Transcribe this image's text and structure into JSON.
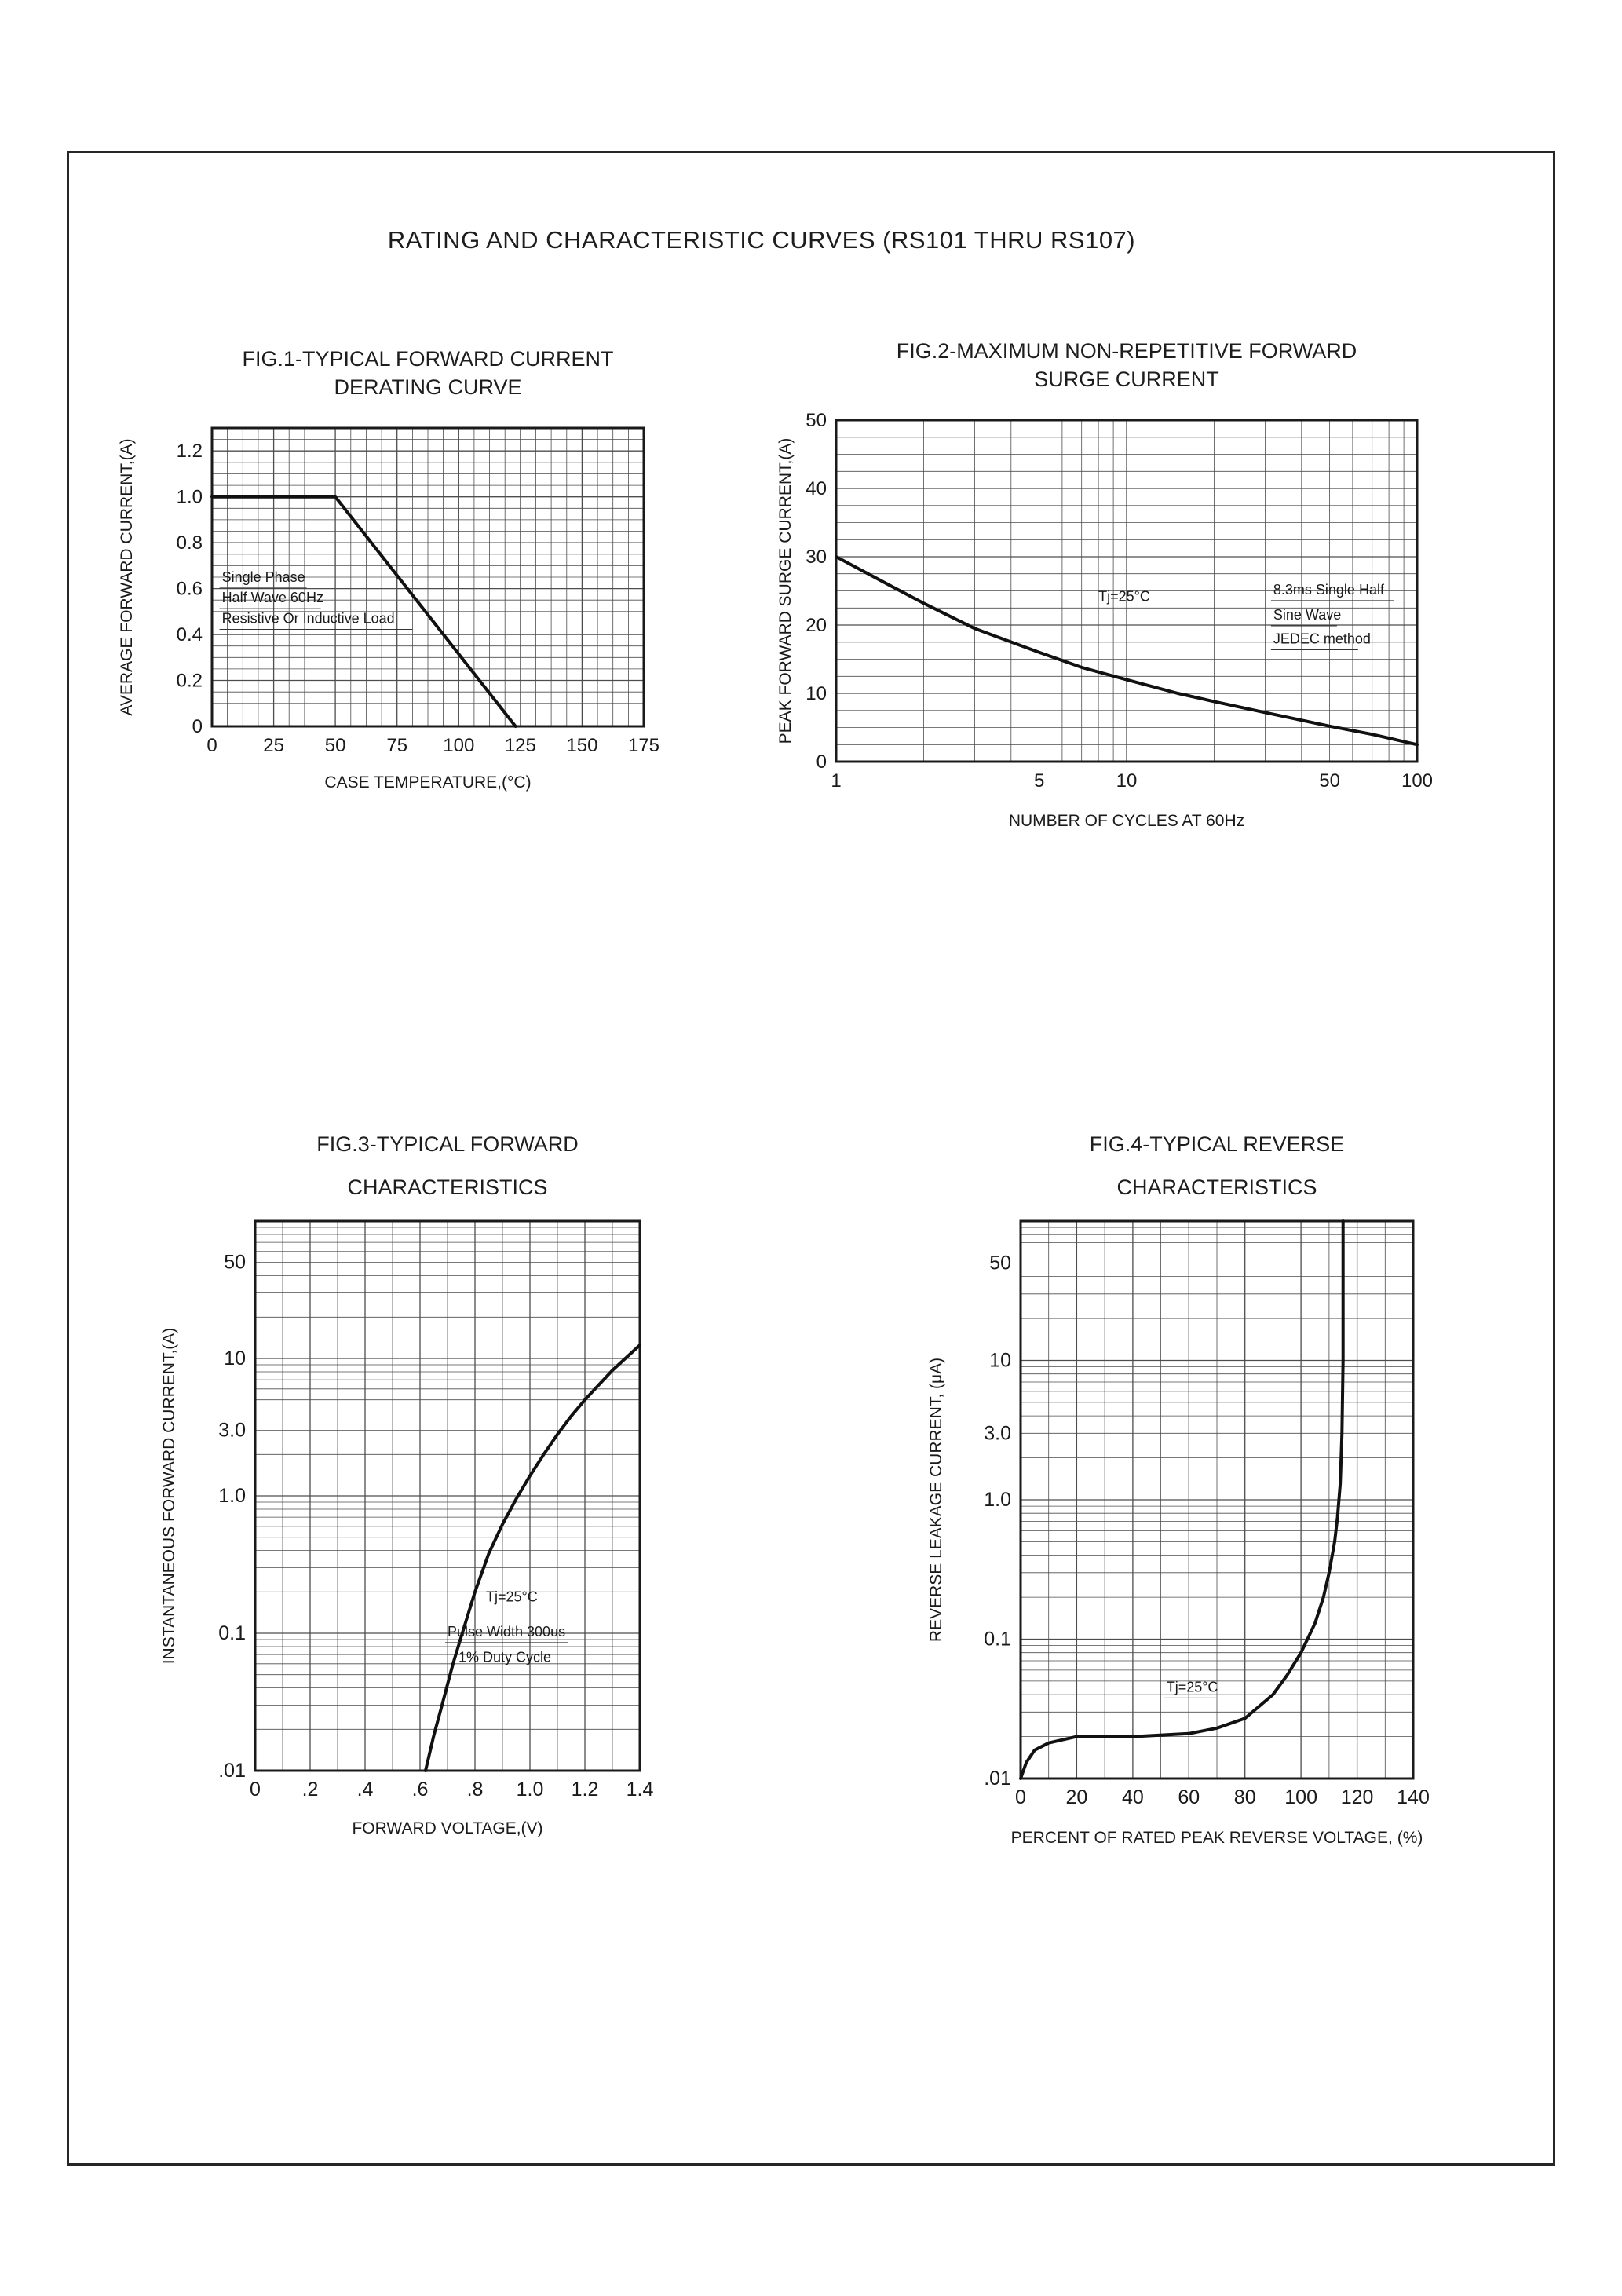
{
  "page": {
    "title": "RATING AND CHARACTERISTIC CURVES (RS101 THRU RS107)"
  },
  "chart_data": [
    {
      "type": "line",
      "title_line1": "FIG.1-TYPICAL FORWARD CURRENT",
      "title_line2": "DERATING CURVE",
      "xlabel": "CASE TEMPERATURE,(°C)",
      "ylabel": "AVERAGE FORWARD CURRENT,(A)",
      "xscale": "linear",
      "yscale": "linear",
      "xlim": [
        0,
        175
      ],
      "ylim": [
        0,
        1.3
      ],
      "xticks": [
        0,
        25,
        50,
        75,
        100,
        125,
        150,
        175
      ],
      "xtick_labels": [
        "0",
        "25",
        "50",
        "75",
        "100",
        "125",
        "150",
        "175"
      ],
      "x_minor": 4,
      "yticks": [
        0,
        0.2,
        0.4,
        0.6,
        0.8,
        1.0,
        1.2
      ],
      "ytick_labels": [
        "0",
        "0.2",
        "0.4",
        "0.6",
        "0.8",
        "1.0",
        "1.2"
      ],
      "y_minor": 4,
      "grid": true,
      "legend": "none",
      "series": [
        {
          "name": "derating-curve",
          "x": [
            0,
            50,
            123
          ],
          "y": [
            1.0,
            1.0,
            0
          ]
        }
      ],
      "annotations": [
        {
          "text": "Single Phase",
          "x": 4,
          "y": 0.63,
          "underline": true
        },
        {
          "text": "Half Wave 60Hz",
          "x": 4,
          "y": 0.54,
          "underline": true
        },
        {
          "text": "Resistive Or Inductive Load",
          "x": 4,
          "y": 0.45,
          "underline": true
        }
      ]
    },
    {
      "type": "line",
      "title_line1": "FIG.2-MAXIMUM NON-REPETITIVE FORWARD",
      "title_line2": "SURGE CURRENT",
      "xlabel": "NUMBER OF CYCLES AT 60Hz",
      "ylabel": "PEAK FORWARD SURGE CURRENT,(A)",
      "xscale": "log",
      "yscale": "linear",
      "xlim": [
        1,
        100
      ],
      "ylim": [
        0,
        50
      ],
      "xticks": [
        1,
        5,
        10,
        50,
        100
      ],
      "xtick_labels": [
        "1",
        "5",
        "10",
        "50",
        "100"
      ],
      "yticks": [
        0,
        10,
        20,
        30,
        40,
        50
      ],
      "ytick_labels": [
        "0",
        "10",
        "20",
        "30",
        "40",
        "50"
      ],
      "y_minor": 4,
      "grid": true,
      "legend": "none",
      "series": [
        {
          "name": "surge-current",
          "x": [
            1,
            1.5,
            2,
            3,
            5,
            7,
            10,
            15,
            20,
            30,
            50,
            70,
            100
          ],
          "y": [
            30,
            26,
            23.2,
            19.5,
            16,
            13.8,
            12,
            10,
            8.8,
            7.2,
            5.2,
            4,
            2.5
          ]
        }
      ],
      "annotations": [
        {
          "text": "Tj=25°C",
          "x": 8,
          "y": 23.5,
          "underline": false
        },
        {
          "text": "8.3ms Single Half",
          "x": 32,
          "y": 24.5,
          "underline": true
        },
        {
          "text": "Sine Wave",
          "x": 32,
          "y": 20.8,
          "underline": true
        },
        {
          "text": "JEDEC method",
          "x": 32,
          "y": 17.3,
          "underline": true
        }
      ]
    },
    {
      "type": "line",
      "title_line1": "FIG.3-TYPICAL FORWARD",
      "title_line2": "CHARACTERISTICS",
      "xlabel": "FORWARD VOLTAGE,(V)",
      "ylabel": "INSTANTANEOUS FORWARD CURRENT,(A)",
      "xscale": "linear",
      "yscale": "log",
      "xlim": [
        0,
        1.4
      ],
      "ylim": [
        0.01,
        100
      ],
      "xticks": [
        0,
        0.2,
        0.4,
        0.6,
        0.8,
        1.0,
        1.2,
        1.4
      ],
      "xtick_labels": [
        "0",
        ".2",
        ".4",
        ".6",
        ".8",
        "1.0",
        "1.2",
        "1.4"
      ],
      "x_minor": 2,
      "yticks": [
        50,
        10,
        3,
        1,
        0.1,
        0.01
      ],
      "ytick_labels": [
        "50",
        "10",
        "3.0",
        "1.0",
        "0.1",
        ".01"
      ],
      "grid": true,
      "legend": "none",
      "series": [
        {
          "name": "forward-characteristic",
          "x": [
            0.62,
            0.65,
            0.68,
            0.72,
            0.76,
            0.8,
            0.85,
            0.9,
            0.95,
            1.0,
            1.05,
            1.1,
            1.15,
            1.2,
            1.3,
            1.4
          ],
          "y": [
            0.01,
            0.018,
            0.03,
            0.06,
            0.11,
            0.2,
            0.38,
            0.62,
            0.95,
            1.4,
            2.0,
            2.8,
            3.8,
            5.0,
            8.2,
            12.5
          ]
        }
      ],
      "annotations": [
        {
          "text": "Tj=25°C",
          "x": 0.84,
          "y": 0.17,
          "underline": false
        },
        {
          "text": "Pulse Width 300us",
          "x": 0.7,
          "y": 0.095,
          "underline": true
        },
        {
          "text": "1% Duty Cycle",
          "x": 0.74,
          "y": 0.062,
          "underline": false
        }
      ]
    },
    {
      "type": "line",
      "title_line1": "FIG.4-TYPICAL REVERSE",
      "title_line2": "CHARACTERISTICS",
      "xlabel": "PERCENT OF RATED PEAK REVERSE VOLTAGE, (%)",
      "ylabel": "REVERSE LEAKAGE CURRENT, (μA)",
      "xscale": "linear",
      "yscale": "log",
      "xlim": [
        0,
        140
      ],
      "ylim": [
        0.01,
        100
      ],
      "xticks": [
        0,
        20,
        40,
        60,
        80,
        100,
        120,
        140
      ],
      "xtick_labels": [
        "0",
        "20",
        "40",
        "60",
        "80",
        "100",
        "120",
        "140"
      ],
      "x_minor": 2,
      "yticks": [
        50,
        10,
        3,
        1,
        0.1,
        0.01
      ],
      "ytick_labels": [
        "50",
        "10",
        "3.0",
        "1.0",
        "0.1",
        ".01"
      ],
      "grid": true,
      "legend": "none",
      "series": [
        {
          "name": "reverse-leakage",
          "x": [
            0,
            2,
            5,
            10,
            20,
            40,
            60,
            70,
            80,
            90,
            95,
            100,
            105,
            108,
            110,
            112,
            113,
            114,
            114.6,
            115,
            115
          ],
          "y": [
            0.01,
            0.013,
            0.016,
            0.018,
            0.02,
            0.02,
            0.021,
            0.023,
            0.027,
            0.04,
            0.055,
            0.08,
            0.13,
            0.2,
            0.3,
            0.5,
            0.75,
            1.3,
            3,
            10,
            100
          ]
        }
      ],
      "annotations": [
        {
          "text": "Tj=25°C",
          "x": 52,
          "y": 0.042,
          "underline": true
        }
      ]
    }
  ]
}
